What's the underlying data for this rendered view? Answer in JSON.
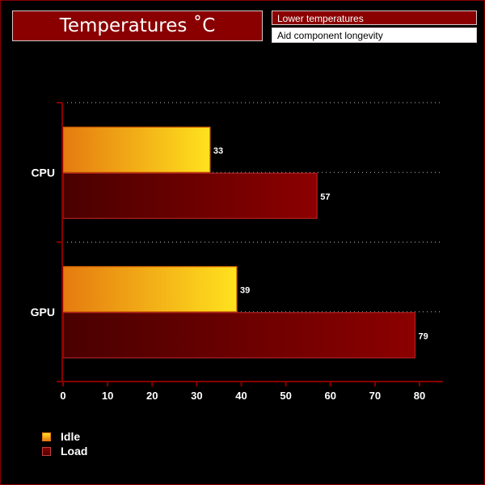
{
  "header": {
    "title": "Temperatures ˚C",
    "note_primary": "Lower temperatures",
    "note_secondary": "Aid component longevity"
  },
  "colors": {
    "background": "#000000",
    "axis": "#8a0000",
    "idle_start": "#e57a10",
    "idle_end": "#ffe21e",
    "load_start": "#4a0000",
    "load_end": "#8c0000"
  },
  "chart_data": {
    "type": "bar",
    "orientation": "horizontal",
    "categories": [
      "CPU",
      "GPU"
    ],
    "series": [
      {
        "name": "Idle",
        "values": [
          33,
          39
        ]
      },
      {
        "name": "Load",
        "values": [
          57,
          79
        ]
      }
    ],
    "x_ticks": [
      0,
      10,
      20,
      30,
      40,
      50,
      60,
      70,
      80
    ],
    "xlim": [
      0,
      85
    ],
    "grid": true,
    "legend_position": "bottom-left",
    "data_labels": true
  }
}
